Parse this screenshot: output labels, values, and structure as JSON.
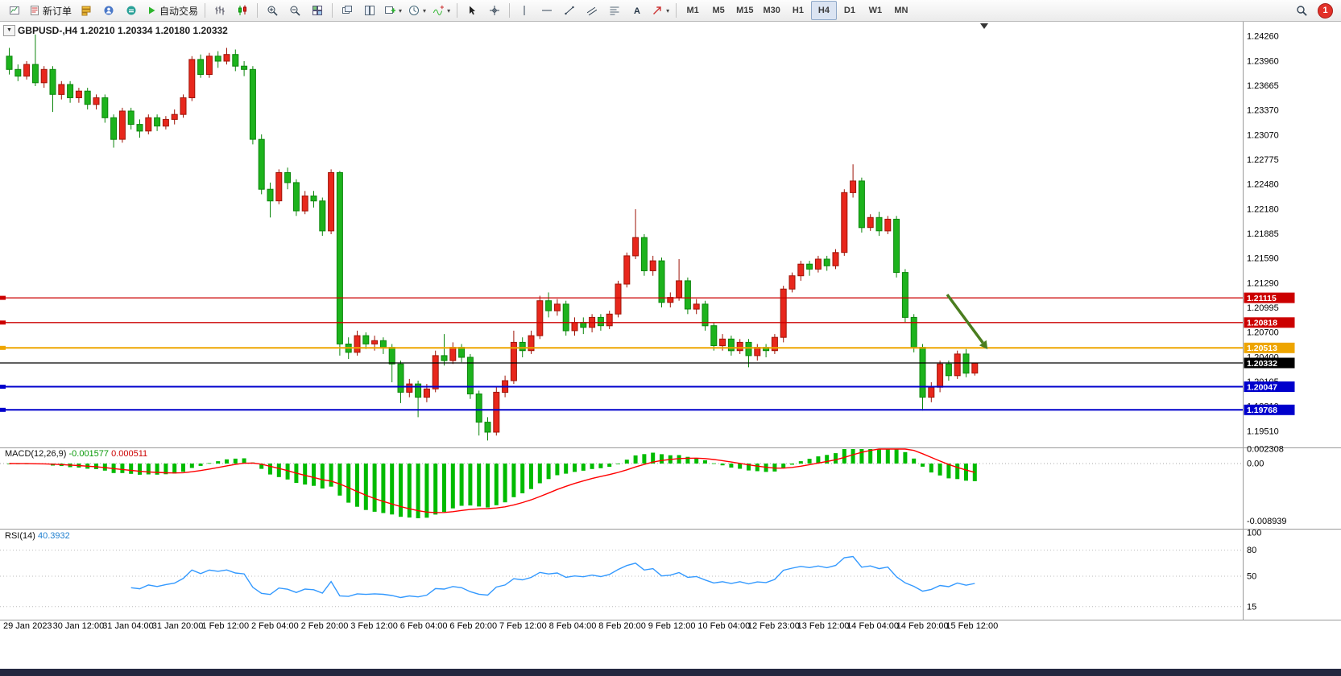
{
  "toolbar": {
    "groups": [
      {
        "items": [
          {
            "name": "chart-window-button",
            "icon": "chartwin"
          },
          {
            "name": "new-order-button",
            "icon": "doc",
            "label": "新订单"
          },
          {
            "name": "market-watch-button",
            "icon": "mw"
          },
          {
            "name": "navigator-button",
            "icon": "nav"
          },
          {
            "name": "terminal-button",
            "icon": "term"
          },
          {
            "name": "auto-trading-button",
            "icon": "play",
            "label": "自动交易"
          }
        ]
      },
      {
        "items": [
          {
            "name": "chart-bars-button",
            "icon": "bars"
          },
          {
            "name": "chart-candles-button",
            "icon": "candle"
          }
        ]
      },
      {
        "items": [
          {
            "name": "zoom-in-button",
            "icon": "zoomin"
          },
          {
            "name": "zoom-out-button",
            "icon": "zoomout"
          },
          {
            "name": "tile-windows-button",
            "icon": "grid"
          }
        ]
      },
      {
        "items": [
          {
            "name": "cascade-windows-button",
            "icon": "cascade"
          },
          {
            "name": "tile-vertical-button",
            "icon": "tile"
          },
          {
            "name": "new-chart-button",
            "icon": "pluschart",
            "caret": true
          },
          {
            "name": "profiles-button",
            "icon": "clock",
            "caret": true
          },
          {
            "name": "indicators-button",
            "icon": "indi",
            "caret": true
          }
        ]
      },
      {
        "items": [
          {
            "name": "cursor-button",
            "icon": "cursor"
          },
          {
            "name": "crosshair-button",
            "icon": "cross"
          }
        ]
      },
      {
        "items": [
          {
            "name": "vertical-line-button",
            "icon": "vline"
          },
          {
            "name": "horizontal-line-button",
            "icon": "hline"
          },
          {
            "name": "trendline-button",
            "icon": "tline"
          },
          {
            "name": "channel-button",
            "icon": "channel"
          },
          {
            "name": "fibonacci-button",
            "icon": "fibo"
          },
          {
            "name": "text-label-button",
            "icon": "textA"
          },
          {
            "name": "arrows-button",
            "icon": "arrows",
            "caret": true
          }
        ]
      }
    ],
    "timeframes": {
      "items": [
        "M1",
        "M5",
        "M15",
        "M30",
        "H1",
        "H4",
        "D1",
        "W1",
        "MN"
      ],
      "active": "H4"
    },
    "notification_count": "1"
  },
  "chart": {
    "title_text": "GBPUSD-,H4 1.20210 1.20334 1.20180 1.20332",
    "collapse_glyph": "▼"
  },
  "chart_data": {
    "type": "candlestick",
    "symbol": "GBPUSD-",
    "period": "H4",
    "ohlc": {
      "open": "1.20210",
      "high": "1.20334",
      "low": "1.20180",
      "close": "1.20332"
    },
    "colors": {
      "up": "#e8271c",
      "up_border": "#9e1408",
      "down": "#1db31d",
      "down_border": "#0c860c",
      "bid_line": "#000000"
    },
    "price_axis": {
      "labels": [
        "1.24260",
        "1.23960",
        "1.23665",
        "1.23370",
        "1.23070",
        "1.22775",
        "1.22480",
        "1.22180",
        "1.21885",
        "1.21590",
        "1.21290",
        "1.20995",
        "1.20700",
        "1.20400",
        "1.20105",
        "1.19810",
        "1.19510"
      ]
    },
    "time_axis": {
      "labels": [
        "29 Jan 2023",
        "30 Jan 12:00",
        "31 Jan 04:00",
        "31 Jan 20:00",
        "1 Feb 12:00",
        "2 Feb 04:00",
        "2 Feb 20:00",
        "3 Feb 12:00",
        "6 Feb 04:00",
        "6 Feb 20:00",
        "7 Feb 12:00",
        "8 Feb 04:00",
        "8 Feb 20:00",
        "9 Feb 12:00",
        "10 Feb 04:00",
        "12 Feb 23:00",
        "13 Feb 12:00",
        "14 Feb 04:00",
        "14 Feb 20:00",
        "15 Feb 12:00"
      ]
    },
    "hlines": [
      {
        "price": 1.21115,
        "color": "#cc0000",
        "label": "1.21115",
        "width": 1.3
      },
      {
        "price": 1.20818,
        "color": "#cc0000",
        "label": "1.20818",
        "width": 1.3
      },
      {
        "price": 1.20513,
        "color": "#eea500",
        "label": "1.20513",
        "width": 2
      },
      {
        "price": 1.20047,
        "color": "#0000cc",
        "label": "1.20047",
        "width": 2
      },
      {
        "price": 1.19768,
        "color": "#0000cc",
        "label": "1.19768",
        "width": 2
      }
    ],
    "bid": {
      "price": 1.20332,
      "label": "1.20332"
    },
    "arrow": {
      "from_bar": 108.15,
      "from_price": 1.21155,
      "to_bar": 112.8,
      "to_price": 1.20497,
      "color": "#4a7d1f"
    },
    "macd": {
      "label": "MACD(12,26,9)",
      "value_main": "-0.001577",
      "value_signal": "0.000511",
      "fast": 12,
      "slow": 26,
      "signal": 9,
      "scale_labels": [
        "0.002308",
        "0.00",
        "-0.008939"
      ],
      "histogram_color": "#00bb00",
      "signal_color": "#ff0000"
    },
    "rsi": {
      "label": "RSI(14)",
      "value": "40.3932",
      "period": 14,
      "levels": [
        80,
        50,
        15
      ],
      "scale_labels": [
        "100",
        "80",
        "50",
        "15"
      ],
      "line_color": "#3399ff"
    },
    "candles": [
      [
        1.2402,
        1.2412,
        1.238,
        1.2386
      ],
      [
        1.2386,
        1.2392,
        1.2372,
        1.2378
      ],
      [
        1.2378,
        1.2396,
        1.2374,
        1.2392
      ],
      [
        1.2392,
        1.2428,
        1.2366,
        1.237
      ],
      [
        1.237,
        1.239,
        1.2364,
        1.2386
      ],
      [
        1.2386,
        1.239,
        1.2335,
        1.2356
      ],
      [
        1.2356,
        1.2372,
        1.235,
        1.2368
      ],
      [
        1.2368,
        1.2372,
        1.2346,
        1.2352
      ],
      [
        1.2352,
        1.2364,
        1.2346,
        1.236
      ],
      [
        1.236,
        1.2364,
        1.2338,
        1.2344
      ],
      [
        1.2344,
        1.2356,
        1.2338,
        1.2352
      ],
      [
        1.2352,
        1.2356,
        1.2322,
        1.2328
      ],
      [
        1.2328,
        1.2332,
        1.2292,
        1.2302
      ],
      [
        1.2302,
        1.234,
        1.2298,
        1.2336
      ],
      [
        1.2336,
        1.234,
        1.2314,
        1.232
      ],
      [
        1.232,
        1.2326,
        1.2304,
        1.2312
      ],
      [
        1.2312,
        1.2332,
        1.2308,
        1.2328
      ],
      [
        1.2328,
        1.2332,
        1.2312,
        1.2318
      ],
      [
        1.2318,
        1.233,
        1.2314,
        1.2326
      ],
      [
        1.2326,
        1.2338,
        1.232,
        1.2332
      ],
      [
        1.2332,
        1.2356,
        1.2328,
        1.2352
      ],
      [
        1.2352,
        1.2402,
        1.2348,
        1.2398
      ],
      [
        1.2398,
        1.2404,
        1.2376,
        1.238
      ],
      [
        1.238,
        1.2406,
        1.2376,
        1.2402
      ],
      [
        1.2402,
        1.2408,
        1.2388,
        1.2396
      ],
      [
        1.2396,
        1.2412,
        1.2392,
        1.2404
      ],
      [
        1.2404,
        1.241,
        1.2384,
        1.239
      ],
      [
        1.239,
        1.2396,
        1.2378,
        1.2386
      ],
      [
        1.2386,
        1.239,
        1.2296,
        1.2302
      ],
      [
        1.2302,
        1.2308,
        1.2236,
        1.2242
      ],
      [
        1.2242,
        1.225,
        1.2208,
        1.2228
      ],
      [
        1.2228,
        1.2266,
        1.2224,
        1.2262
      ],
      [
        1.2262,
        1.2268,
        1.2242,
        1.225
      ],
      [
        1.225,
        1.2254,
        1.221,
        1.2216
      ],
      [
        1.2216,
        1.224,
        1.2212,
        1.2234
      ],
      [
        1.2234,
        1.224,
        1.222,
        1.2228
      ],
      [
        1.2228,
        1.2232,
        1.2186,
        1.2192
      ],
      [
        1.2192,
        1.2266,
        1.2188,
        1.2262
      ],
      [
        1.2262,
        1.2264,
        1.2042,
        1.2056
      ],
      [
        1.2056,
        1.2064,
        1.2038,
        1.2046
      ],
      [
        1.2046,
        1.2072,
        1.2042,
        1.2066
      ],
      [
        1.2066,
        1.207,
        1.205,
        1.2056
      ],
      [
        1.2056,
        1.2066,
        1.2048,
        1.206
      ],
      [
        1.206,
        1.2064,
        1.2044,
        1.2052
      ],
      [
        1.2052,
        1.2056,
        1.201,
        1.2032
      ],
      [
        1.2032,
        1.2036,
        1.1985,
        1.1998
      ],
      [
        1.1998,
        1.2014,
        1.1992,
        1.2008
      ],
      [
        1.2008,
        1.2012,
        1.1968,
        1.1992
      ],
      [
        1.1992,
        1.2008,
        1.1986,
        1.2002
      ],
      [
        1.2002,
        1.2048,
        1.1998,
        1.2042
      ],
      [
        1.2042,
        1.2068,
        1.203,
        1.2036
      ],
      [
        1.2036,
        1.2058,
        1.2032,
        1.2052
      ],
      [
        1.2052,
        1.2056,
        1.2034,
        1.204
      ],
      [
        1.204,
        1.2044,
        1.199,
        1.1996
      ],
      [
        1.1996,
        1.2,
        1.1946,
        1.1962
      ],
      [
        1.1962,
        1.1968,
        1.194,
        1.195
      ],
      [
        1.195,
        1.2004,
        1.1946,
        1.1998
      ],
      [
        1.1998,
        1.2018,
        1.1992,
        1.2012
      ],
      [
        1.2012,
        1.2072,
        1.2008,
        1.2058
      ],
      [
        1.2058,
        1.2064,
        1.204,
        1.2048
      ],
      [
        1.2048,
        1.2072,
        1.2044,
        1.2066
      ],
      [
        1.2066,
        1.2114,
        1.2062,
        1.2108
      ],
      [
        1.2108,
        1.2118,
        1.2088,
        1.2096
      ],
      [
        1.2096,
        1.211,
        1.209,
        1.2104
      ],
      [
        1.2104,
        1.2108,
        1.2066,
        1.2072
      ],
      [
        1.2072,
        1.2088,
        1.2066,
        1.2082
      ],
      [
        1.2082,
        1.2088,
        1.2068,
        1.2076
      ],
      [
        1.2076,
        1.2092,
        1.207,
        1.2088
      ],
      [
        1.2088,
        1.2092,
        1.2072,
        1.2078
      ],
      [
        1.2078,
        1.2096,
        1.2074,
        1.2092
      ],
      [
        1.2092,
        1.2132,
        1.2088,
        1.2128
      ],
      [
        1.2128,
        1.2166,
        1.2124,
        1.2162
      ],
      [
        1.2162,
        1.2218,
        1.2158,
        1.2184
      ],
      [
        1.2184,
        1.2188,
        1.2138,
        1.2144
      ],
      [
        1.2144,
        1.2162,
        1.2138,
        1.2156
      ],
      [
        1.2156,
        1.216,
        1.21,
        1.2106
      ],
      [
        1.2106,
        1.2118,
        1.21,
        1.2112
      ],
      [
        1.2112,
        1.2158,
        1.2108,
        1.2132
      ],
      [
        1.2132,
        1.2136,
        1.2092,
        1.2098
      ],
      [
        1.2098,
        1.211,
        1.2092,
        1.2104
      ],
      [
        1.2104,
        1.2108,
        1.2072,
        1.2078
      ],
      [
        1.2078,
        1.2082,
        1.2048,
        1.2054
      ],
      [
        1.2054,
        1.2068,
        1.2048,
        1.2062
      ],
      [
        1.2062,
        1.2066,
        1.2042,
        1.2048
      ],
      [
        1.2048,
        1.2062,
        1.2044,
        1.2058
      ],
      [
        1.2058,
        1.2062,
        1.2028,
        1.2042
      ],
      [
        1.2042,
        1.2056,
        1.2036,
        1.2052
      ],
      [
        1.2052,
        1.2056,
        1.204,
        1.2048
      ],
      [
        1.2048,
        1.2068,
        1.2044,
        1.2064
      ],
      [
        1.2064,
        1.2126,
        1.2058,
        1.2122
      ],
      [
        1.2122,
        1.2142,
        1.2118,
        1.2138
      ],
      [
        1.2138,
        1.2156,
        1.2132,
        1.2152
      ],
      [
        1.2152,
        1.2156,
        1.2138,
        1.2146
      ],
      [
        1.2146,
        1.2162,
        1.2142,
        1.2158
      ],
      [
        1.2158,
        1.2162,
        1.2144,
        1.215
      ],
      [
        1.215,
        1.217,
        1.2146,
        1.2166
      ],
      [
        1.2166,
        1.2242,
        1.2162,
        1.2238
      ],
      [
        1.2238,
        1.2272,
        1.2232,
        1.2252
      ],
      [
        1.2252,
        1.2256,
        1.219,
        1.2196
      ],
      [
        1.2196,
        1.2212,
        1.2192,
        1.2208
      ],
      [
        1.2208,
        1.2215,
        1.2186,
        1.2192
      ],
      [
        1.2192,
        1.221,
        1.2188,
        1.2206
      ],
      [
        1.2206,
        1.221,
        1.2136,
        1.2142
      ],
      [
        1.2142,
        1.2146,
        1.2082,
        1.2088
      ],
      [
        1.2088,
        1.2092,
        1.2046,
        1.2052
      ],
      [
        1.2052,
        1.2056,
        1.1976,
        1.1992
      ],
      [
        1.1992,
        1.201,
        1.1986,
        1.2004
      ],
      [
        1.2004,
        1.2036,
        1.1998,
        1.2032
      ],
      [
        1.2032,
        1.2036,
        1.2012,
        1.2018
      ],
      [
        1.2018,
        1.2048,
        1.2014,
        1.2044
      ],
      [
        1.2044,
        1.205,
        1.2016,
        1.2021
      ],
      [
        1.2021,
        1.20334,
        1.2018,
        1.20332
      ]
    ]
  }
}
